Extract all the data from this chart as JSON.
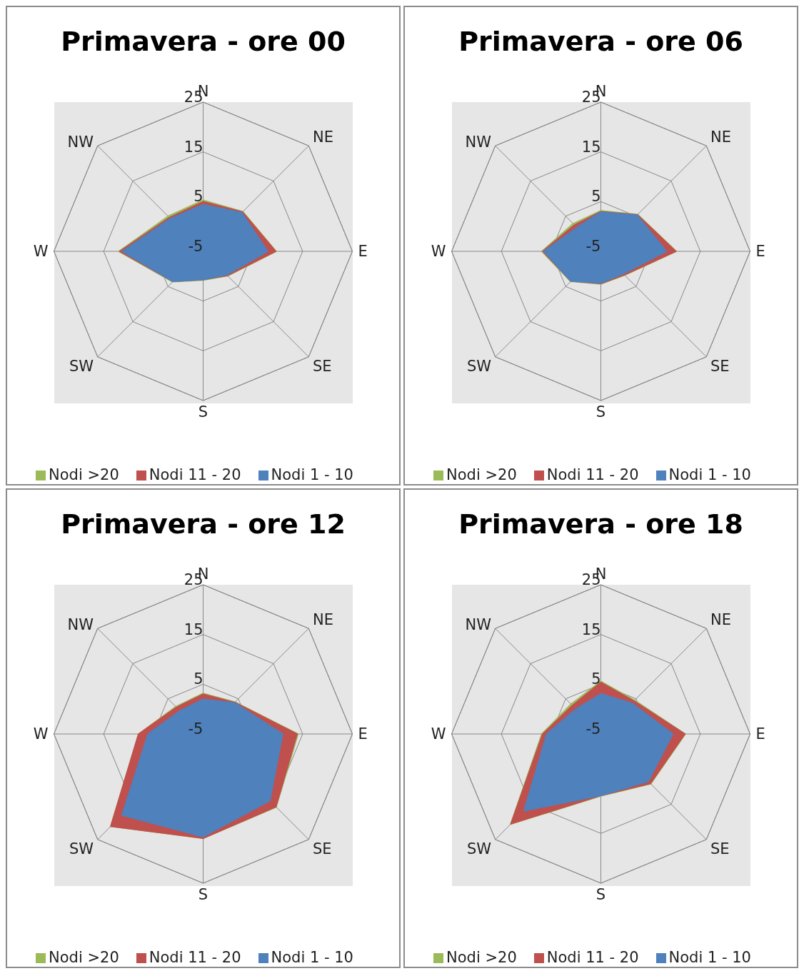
{
  "chart_data": [
    {
      "type": "radar",
      "title": "Primavera - ore 00",
      "categories": [
        "N",
        "NE",
        "E",
        "SE",
        "S",
        "SW",
        "W",
        "NW"
      ],
      "ylim": [
        -5,
        25
      ],
      "yticks": [
        -5,
        5,
        15,
        25
      ],
      "grid": true,
      "legend": "bottom",
      "series": [
        {
          "name": "Nodi >20",
          "color": "#9bbb59",
          "values": [
            5.3,
            6.3,
            9.7,
            2,
            0.8,
            3.7,
            12,
            5
          ]
        },
        {
          "name": "Nodi 11 - 20",
          "color": "#c0504d",
          "values": [
            5,
            6.2,
            9.6,
            1.9,
            0.7,
            3.6,
            11.8,
            4.6
          ]
        },
        {
          "name": "Nodi 1 - 10",
          "color": "#4f81bd",
          "values": [
            4.4,
            6,
            8,
            1.7,
            0.7,
            3.6,
            11.3,
            4.3
          ]
        }
      ]
    },
    {
      "type": "radar",
      "title": "Primavera - ore 06",
      "categories": [
        "N",
        "NE",
        "E",
        "SE",
        "S",
        "SW",
        "W",
        "NW"
      ],
      "ylim": [
        -5,
        25
      ],
      "yticks": [
        -5,
        5,
        15,
        25
      ],
      "grid": true,
      "legend": "bottom",
      "series": [
        {
          "name": "Nodi >20",
          "color": "#9bbb59",
          "values": [
            3.2,
            5.5,
            10.2,
            1.8,
            1.6,
            3.6,
            6.9,
            2.9
          ]
        },
        {
          "name": "Nodi 11 - 20",
          "color": "#c0504d",
          "values": [
            3,
            5.4,
            10.1,
            1.7,
            1.5,
            3.5,
            6.7,
            2.5
          ]
        },
        {
          "name": "Nodi 1 - 10",
          "color": "#4f81bd",
          "values": [
            2.9,
            5.3,
            8.2,
            1.4,
            1.4,
            3.5,
            6.5,
            1.8
          ]
        }
      ]
    },
    {
      "type": "radar",
      "title": "Primavera - ore 12",
      "categories": [
        "N",
        "NE",
        "E",
        "SE",
        "S",
        "SW",
        "W",
        "NW"
      ],
      "ylim": [
        -5,
        25
      ],
      "yticks": [
        -5,
        5,
        15,
        25
      ],
      "grid": true,
      "legend": "bottom",
      "series": [
        {
          "name": "Nodi >20",
          "color": "#9bbb59",
          "values": [
            3.2,
            4.1,
            14.1,
            15.8,
            16,
            21.3,
            8,
            2.8
          ]
        },
        {
          "name": "Nodi 11 - 20",
          "color": "#c0504d",
          "values": [
            3,
            4,
            13.9,
            15.7,
            16,
            21.3,
            8,
            2.6
          ]
        },
        {
          "name": "Nodi 1 - 10",
          "color": "#4f81bd",
          "values": [
            2,
            3.9,
            11,
            14,
            15.7,
            18.1,
            6.1,
            1.6
          ]
        }
      ]
    },
    {
      "type": "radar",
      "title": "Primavera - ore 18",
      "categories": [
        "N",
        "NE",
        "E",
        "SE",
        "S",
        "SW",
        "W",
        "NW"
      ],
      "ylim": [
        -5,
        25
      ],
      "yticks": [
        -5,
        5,
        15,
        25
      ],
      "grid": true,
      "legend": "bottom",
      "series": [
        {
          "name": "Nodi >20",
          "color": "#9bbb59",
          "values": [
            5.6,
            4.6,
            12,
            9.2,
            7.5,
            20.7,
            6.9,
            3.5
          ]
        },
        {
          "name": "Nodi 11 - 20",
          "color": "#c0504d",
          "values": [
            5.4,
            4.4,
            11.9,
            9.1,
            7.4,
            20.6,
            6.7,
            3.1
          ]
        },
        {
          "name": "Nodi 1 - 10",
          "color": "#4f81bd",
          "values": [
            3.1,
            3.8,
            9.5,
            8.5,
            7.4,
            16.9,
            5.9,
            2.1
          ]
        }
      ]
    }
  ]
}
